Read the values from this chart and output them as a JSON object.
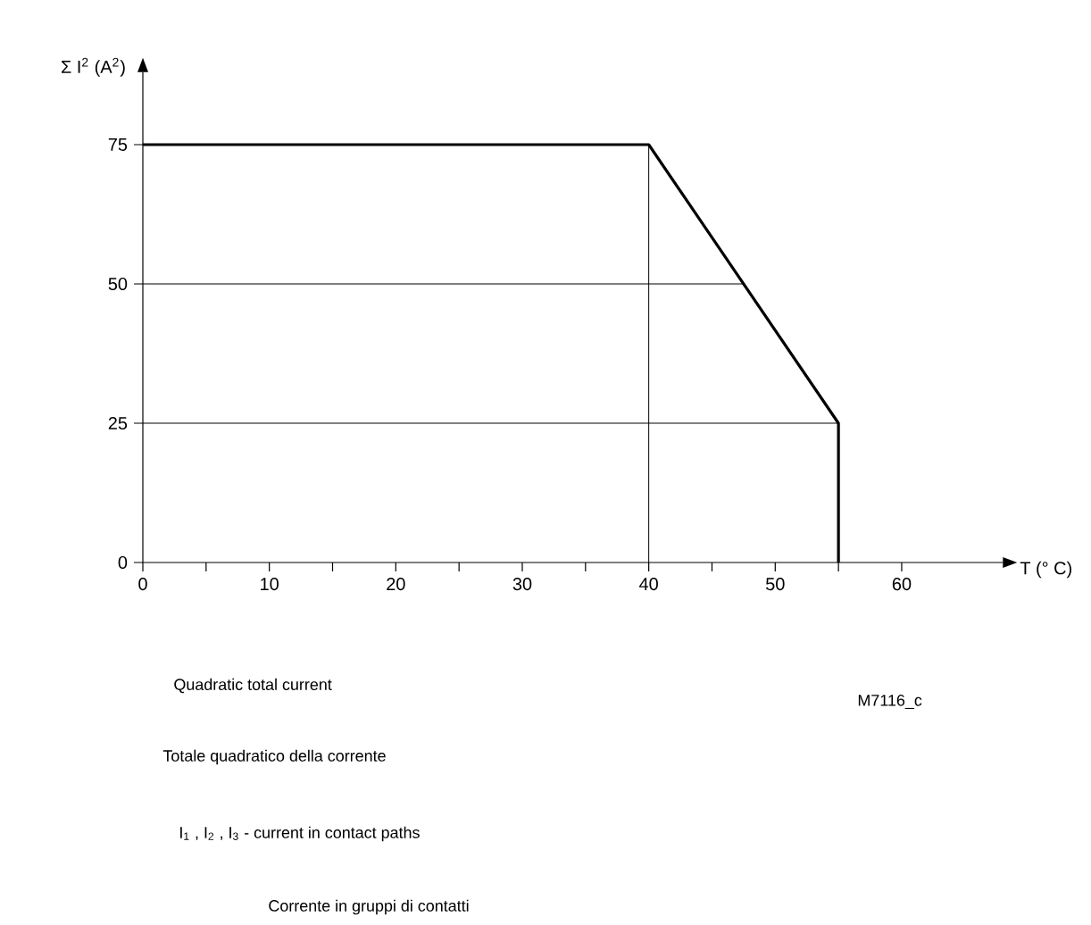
{
  "chart_data": {
    "type": "line",
    "ylabel": "Σ I$^{2}$ (A$^{2}$)",
    "xlabel": "T (° C)",
    "x": [
      0,
      40,
      55,
      55
    ],
    "series": [
      {
        "color": "#000000",
        "values": [
          75,
          75,
          25,
          0
        ]
      }
    ],
    "xlim": [
      0,
      68
    ],
    "ylim": [
      0,
      88
    ],
    "xticks": [
      0,
      {
        "value": 5,
        "label": null
      },
      10,
      {
        "value": 15,
        "label": null
      },
      20,
      {
        "value": 25,
        "label": null
      },
      30,
      {
        "value": 35,
        "label": null
      },
      40,
      {
        "value": 45,
        "label": null
      },
      50,
      {
        "value": 55,
        "label": null
      },
      60
    ],
    "yticks": [
      0,
      25,
      50,
      75
    ],
    "ref_lines": [
      {
        "axis": "y",
        "value": 25
      },
      {
        "axis": "y",
        "value": 50
      },
      {
        "axis": "x",
        "value": 40
      }
    ],
    "marker": "none",
    "line_style": "solid",
    "annotations": [
      "Quadratic total current",
      "M7116_c",
      "Totale quadratico della corrente",
      "I$_{1}$ , I$_{2}$ , I$_{3}$  - current in contact paths",
      "Corrente in gruppi di contatti"
    ]
  }
}
